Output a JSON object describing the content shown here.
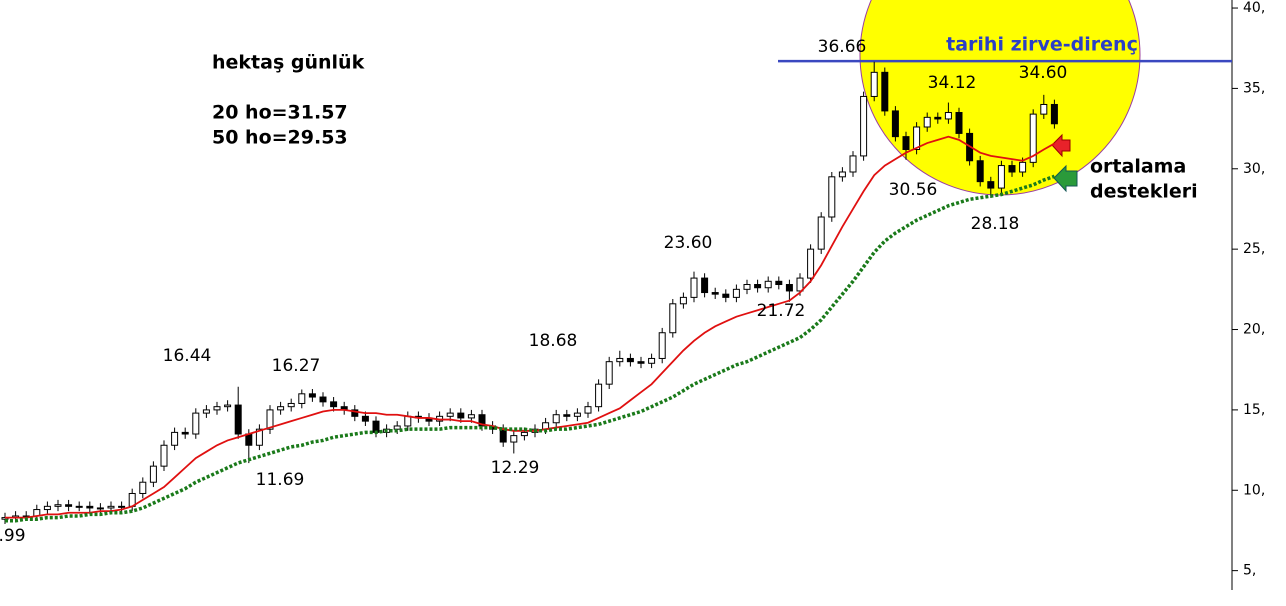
{
  "chart_data": {
    "type": "candlestick",
    "title": "hektaş günlük",
    "notes": [
      "20 ho=31.57",
      "50 ho=29.53"
    ],
    "resistance_label": "tarihi zirve-direnç",
    "support_label": [
      "ortalama",
      "destekleri"
    ],
    "price_labels": [
      "36.66",
      "34.12",
      "34.60",
      "30.56",
      "28.18",
      "23.60",
      "21.72",
      "18.68",
      "16.44",
      "16.27",
      "11.69",
      "12.29",
      ".99"
    ],
    "resistance_level": 36.7,
    "ylim": [
      2.8,
      40.5
    ],
    "yticks": [
      {
        "value": 40,
        "label": "40,"
      },
      {
        "value": 35,
        "label": "35,"
      },
      {
        "value": 30,
        "label": "30,"
      },
      {
        "value": 25,
        "label": "25,"
      },
      {
        "value": 20,
        "label": "20,"
      },
      {
        "value": 15,
        "label": "15,"
      },
      {
        "value": 10,
        "label": "10,"
      },
      {
        "value": 5,
        "label": "5,"
      }
    ],
    "open": [
      8.2,
      8.3,
      8.4,
      8.4,
      8.8,
      9.0,
      9.1,
      9.0,
      9.0,
      8.9,
      8.9,
      9.0,
      9.0,
      9.8,
      10.5,
      11.5,
      12.8,
      13.6,
      13.5,
      14.8,
      15.0,
      15.2,
      15.3,
      13.5,
      12.8,
      13.8,
      15.0,
      15.2,
      15.4,
      16.0,
      15.8,
      15.5,
      15.2,
      15.0,
      14.6,
      14.3,
      13.6,
      13.8,
      14.0,
      14.6,
      14.5,
      14.3,
      14.6,
      14.8,
      14.5,
      14.7,
      14.0,
      13.8,
      13.0,
      13.4,
      13.6,
      13.8,
      14.2,
      14.7,
      14.6,
      14.8,
      15.2,
      16.6,
      18.0,
      18.2,
      18.0,
      17.9,
      18.2,
      19.8,
      21.6,
      22.0,
      23.2,
      22.3,
      22.2,
      22.0,
      22.5,
      22.8,
      22.6,
      23.0,
      22.8,
      22.4,
      23.2,
      25.0,
      27.0,
      29.5,
      29.8,
      30.8,
      34.5,
      36.0,
      33.6,
      32.0,
      31.2,
      32.6,
      33.2,
      33.1,
      33.5,
      32.2,
      30.5,
      29.2,
      28.8,
      30.2,
      29.8,
      30.4,
      33.4,
      34.0
    ],
    "high": [
      8.6,
      8.7,
      8.7,
      9.1,
      9.3,
      9.4,
      9.4,
      9.3,
      9.3,
      9.2,
      9.3,
      9.3,
      10.1,
      10.8,
      11.8,
      13.1,
      13.9,
      13.9,
      15.1,
      15.3,
      15.5,
      15.6,
      16.44,
      13.8,
      14.1,
      15.3,
      15.5,
      15.7,
      16.27,
      16.3,
      16.1,
      15.8,
      15.5,
      15.3,
      14.9,
      14.6,
      14.1,
      14.3,
      14.9,
      14.9,
      14.8,
      14.9,
      15.1,
      15.1,
      15.0,
      15.0,
      14.3,
      14.1,
      13.7,
      13.9,
      14.1,
      14.5,
      15.0,
      15.0,
      15.1,
      15.5,
      16.9,
      18.3,
      18.68,
      18.5,
      18.3,
      18.5,
      20.1,
      21.9,
      22.3,
      23.6,
      23.5,
      22.6,
      22.5,
      22.8,
      23.1,
      23.1,
      23.3,
      23.3,
      23.1,
      23.5,
      25.3,
      27.3,
      29.8,
      30.1,
      31.1,
      34.8,
      36.66,
      36.3,
      33.9,
      32.3,
      32.9,
      33.5,
      33.5,
      34.12,
      33.8,
      32.5,
      30.8,
      29.5,
      30.5,
      30.5,
      30.7,
      33.7,
      34.6,
      34.3
    ],
    "low": [
      7.9,
      8.0,
      8.1,
      8.1,
      8.5,
      8.7,
      8.7,
      8.7,
      8.6,
      8.6,
      8.6,
      8.7,
      8.7,
      9.5,
      10.2,
      11.2,
      12.5,
      13.2,
      13.2,
      14.5,
      14.7,
      14.9,
      13.2,
      11.69,
      12.5,
      13.5,
      14.7,
      14.9,
      15.1,
      15.5,
      15.2,
      14.9,
      14.7,
      14.3,
      14.0,
      13.3,
      13.3,
      13.5,
      13.7,
      14.2,
      14.0,
      14.0,
      14.3,
      14.2,
      14.2,
      13.7,
      13.5,
      12.7,
      12.29,
      13.1,
      13.3,
      13.5,
      13.9,
      14.3,
      14.3,
      14.5,
      14.9,
      16.3,
      17.7,
      17.7,
      17.6,
      17.6,
      17.9,
      19.5,
      21.3,
      21.7,
      22.0,
      21.9,
      21.7,
      21.7,
      22.2,
      22.3,
      22.3,
      22.5,
      21.72,
      22.1,
      22.9,
      24.7,
      26.7,
      29.2,
      29.5,
      30.5,
      34.2,
      33.3,
      31.7,
      30.56,
      30.9,
      32.3,
      32.8,
      32.8,
      31.9,
      30.2,
      28.9,
      28.18,
      28.5,
      29.5,
      29.5,
      30.1,
      33.1,
      32.5
    ],
    "close": [
      8.3,
      8.4,
      8.4,
      8.8,
      9.0,
      9.1,
      9.0,
      9.0,
      8.9,
      8.9,
      9.0,
      9.0,
      9.8,
      10.5,
      11.5,
      12.8,
      13.6,
      13.5,
      14.8,
      15.0,
      15.2,
      15.3,
      13.5,
      12.8,
      13.8,
      15.0,
      15.2,
      15.4,
      16.0,
      15.8,
      15.5,
      15.2,
      15.0,
      14.6,
      14.3,
      13.6,
      13.8,
      14.0,
      14.6,
      14.5,
      14.3,
      14.6,
      14.8,
      14.5,
      14.7,
      14.0,
      13.8,
      13.0,
      13.4,
      13.6,
      13.8,
      14.2,
      14.7,
      14.6,
      14.8,
      15.2,
      16.6,
      18.0,
      18.2,
      18.0,
      17.9,
      18.2,
      19.8,
      21.6,
      22.0,
      23.2,
      22.3,
      22.2,
      22.0,
      22.5,
      22.8,
      22.6,
      23.0,
      22.8,
      22.4,
      23.2,
      25.0,
      27.0,
      29.5,
      29.8,
      30.8,
      34.5,
      36.0,
      33.6,
      32.0,
      31.2,
      32.6,
      33.2,
      33.1,
      33.5,
      32.2,
      30.5,
      29.2,
      28.8,
      30.2,
      29.8,
      30.4,
      33.4,
      34.0,
      32.8
    ],
    "overlays": [
      {
        "color": "#e01010",
        "dashed": false,
        "values": [
          8.3,
          8.3,
          8.3,
          8.4,
          8.5,
          8.5,
          8.6,
          8.6,
          8.6,
          8.7,
          8.7,
          8.8,
          9.0,
          9.4,
          9.8,
          10.2,
          10.8,
          11.4,
          12.0,
          12.4,
          12.8,
          13.1,
          13.3,
          13.5,
          13.7,
          13.9,
          14.1,
          14.3,
          14.5,
          14.7,
          14.9,
          15.0,
          15.0,
          14.9,
          14.8,
          14.8,
          14.7,
          14.7,
          14.6,
          14.5,
          14.5,
          14.4,
          14.4,
          14.3,
          14.3,
          14.1,
          14.0,
          13.8,
          13.7,
          13.7,
          13.7,
          13.8,
          13.9,
          14.0,
          14.1,
          14.2,
          14.5,
          14.8,
          15.1,
          15.6,
          16.1,
          16.6,
          17.3,
          18.0,
          18.7,
          19.3,
          19.8,
          20.2,
          20.5,
          20.8,
          21.0,
          21.2,
          21.4,
          21.6,
          21.8,
          22.3,
          23.0,
          24.0,
          25.2,
          26.4,
          27.5,
          28.6,
          29.6,
          30.2,
          30.6,
          31.0,
          31.3,
          31.6,
          31.8,
          32.0,
          31.8,
          31.4,
          31.0,
          30.8,
          30.7,
          30.6,
          30.5,
          30.8,
          31.2,
          31.57
        ]
      },
      {
        "color": "#1a7a1a",
        "dashed": true,
        "values": [
          8.1,
          8.1,
          8.2,
          8.2,
          8.3,
          8.3,
          8.4,
          8.4,
          8.5,
          8.5,
          8.6,
          8.6,
          8.7,
          8.9,
          9.2,
          9.5,
          9.8,
          10.1,
          10.5,
          10.8,
          11.1,
          11.4,
          11.7,
          11.9,
          12.1,
          12.3,
          12.5,
          12.7,
          12.8,
          13.0,
          13.1,
          13.3,
          13.4,
          13.5,
          13.6,
          13.6,
          13.7,
          13.7,
          13.8,
          13.8,
          13.8,
          13.8,
          13.9,
          13.9,
          13.9,
          13.9,
          13.9,
          13.8,
          13.8,
          13.8,
          13.7,
          13.7,
          13.8,
          13.8,
          13.9,
          14.0,
          14.1,
          14.3,
          14.5,
          14.7,
          14.9,
          15.2,
          15.5,
          15.8,
          16.2,
          16.6,
          16.9,
          17.2,
          17.5,
          17.8,
          18.0,
          18.3,
          18.6,
          18.9,
          19.2,
          19.5,
          20.0,
          20.6,
          21.4,
          22.2,
          23.0,
          23.9,
          24.8,
          25.5,
          26.0,
          26.4,
          26.8,
          27.1,
          27.4,
          27.7,
          27.9,
          28.1,
          28.2,
          28.3,
          28.4,
          28.6,
          28.8,
          29.0,
          29.3,
          29.53
        ]
      }
    ]
  }
}
